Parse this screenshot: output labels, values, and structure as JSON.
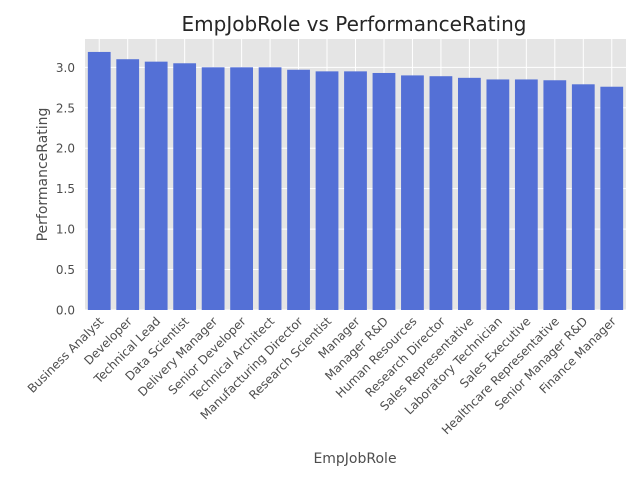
{
  "chart_data": {
    "type": "bar",
    "title": "EmpJobRole vs PerformanceRating",
    "xlabel": "EmpJobRole",
    "ylabel": "PerformanceRating",
    "categories": [
      "Business Analyst",
      "Developer",
      "Technical Lead",
      "Data Scientist",
      "Delivery Manager",
      "Senior Developer",
      "Technical Architect",
      "Manufacturing Director",
      "Research Scientist",
      "Manager",
      "Manager R&D",
      "Human Resources",
      "Research Director",
      "Sales Representative",
      "Laboratory Technician",
      "Sales Executive",
      "Healthcare Representative",
      "Senior Manager R&D",
      "Finance Manager"
    ],
    "values": [
      3.19,
      3.1,
      3.07,
      3.05,
      3.0,
      3.0,
      3.0,
      2.97,
      2.95,
      2.95,
      2.93,
      2.9,
      2.89,
      2.87,
      2.85,
      2.85,
      2.84,
      2.79,
      2.76
    ],
    "ylim": [
      0,
      3.35
    ],
    "yticks": [
      "0.0",
      "0.5",
      "1.0",
      "1.5",
      "2.0",
      "2.5",
      "3.0"
    ],
    "grid": true,
    "bar_color": "#5470d6",
    "plot_background": "#e5e5e5",
    "grid_color": "#ffffff"
  }
}
